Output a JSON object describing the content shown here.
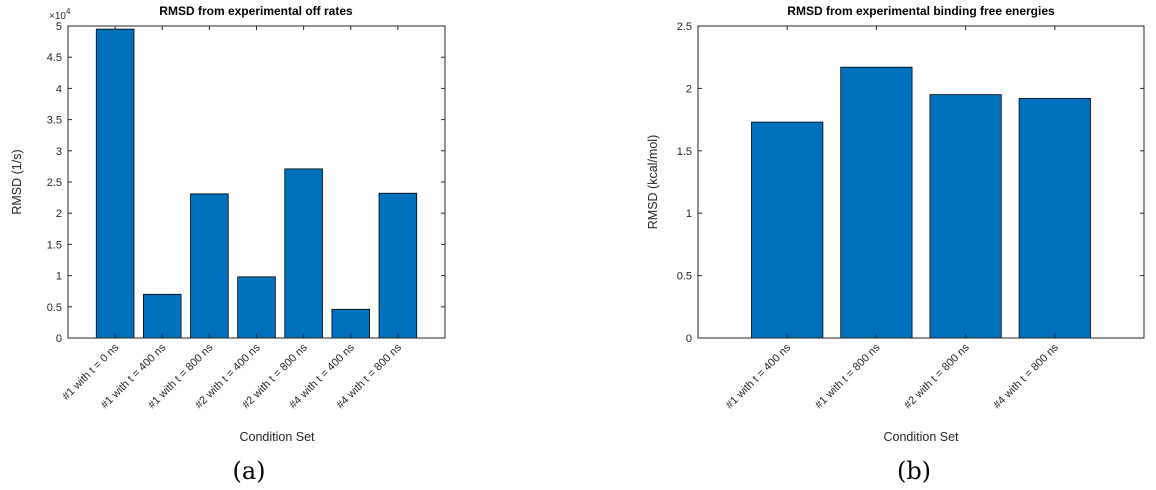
{
  "chart_data": [
    {
      "type": "bar",
      "title": "RMSD from experimental off rates",
      "xlabel": "Condition Set",
      "ylabel": "RMSD (1/s)",
      "categories": [
        "#1 with t = 0 ns",
        "#1 with t = 400 ns",
        "#1 with t = 800 ns",
        "#2 with t = 400 ns",
        "#2 with t = 800 ns",
        "#4 with t = 400 ns",
        "#4 with t = 800 ns"
      ],
      "values": [
        49500,
        7000,
        23100,
        9800,
        27100,
        4600,
        23200
      ],
      "ylim": [
        0,
        50000
      ],
      "yticks": [
        0,
        0.5,
        1,
        1.5,
        2,
        2.5,
        3,
        3.5,
        4,
        4.5,
        5
      ],
      "ytick_labels": [
        "0",
        "0.5",
        "1",
        "1.5",
        "2",
        "2.5",
        "3",
        "3.5",
        "4",
        "4.5",
        "5"
      ],
      "y_exponent_base": "×10",
      "y_exponent_power": "4",
      "bar_color": "#0072bd",
      "caption": "(a)"
    },
    {
      "type": "bar",
      "title": "RMSD from experimental binding free energies",
      "xlabel": "Condition Set",
      "ylabel": "RMSD (kcal/mol)",
      "categories": [
        "#1 with t = 400 ns",
        "#1 with t = 800 ns",
        "#2 with t = 800 ns",
        "#4 with t = 800 ns"
      ],
      "values": [
        1.73,
        2.17,
        1.95,
        1.92
      ],
      "ylim": [
        0,
        2.5
      ],
      "yticks": [
        0,
        0.5,
        1,
        1.5,
        2,
        2.5
      ],
      "ytick_labels": [
        "0",
        "0.5",
        "1",
        "1.5",
        "2",
        "2.5"
      ],
      "bar_color": "#0072bd",
      "caption": "(b)"
    }
  ]
}
